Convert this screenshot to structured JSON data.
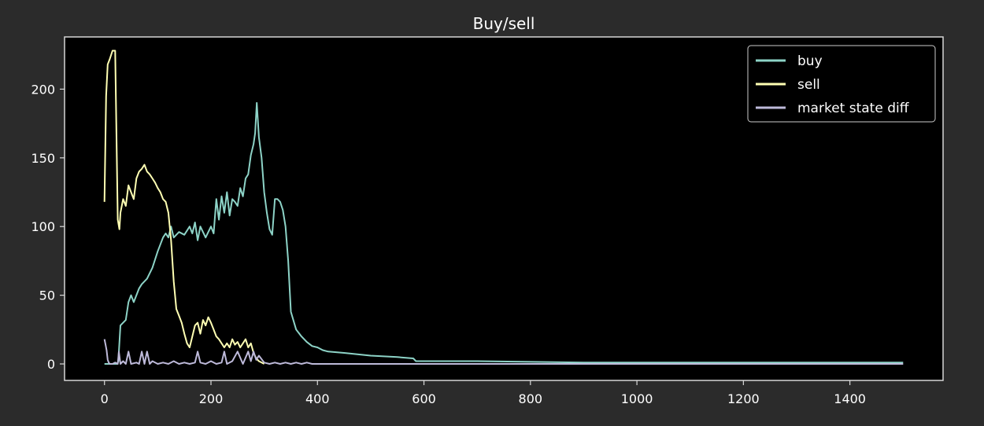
{
  "chart_data": {
    "type": "line",
    "title": "Buy/sell",
    "xlabel": "",
    "ylabel": "",
    "xlim": [
      -75,
      1575
    ],
    "ylim": [
      -12,
      238
    ],
    "xticks": [
      0,
      200,
      400,
      600,
      800,
      1000,
      1200,
      1400
    ],
    "yticks": [
      0,
      50,
      100,
      150,
      200
    ],
    "grid": false,
    "legend_position": "top-right",
    "background_color": "#000000",
    "figure_color": "#2b2b2b",
    "series": [
      {
        "name": "buy",
        "color": "#8dd3c7",
        "x": [
          0,
          10,
          20,
          24,
          26,
          30,
          40,
          45,
          50,
          55,
          60,
          65,
          70,
          80,
          90,
          100,
          110,
          115,
          120,
          125,
          130,
          140,
          150,
          160,
          165,
          170,
          175,
          180,
          190,
          200,
          205,
          210,
          215,
          220,
          225,
          230,
          235,
          240,
          245,
          250,
          255,
          260,
          265,
          270,
          275,
          280,
          283,
          286,
          290,
          295,
          300,
          305,
          310,
          315,
          320,
          325,
          330,
          335,
          340,
          345,
          350,
          360,
          370,
          380,
          390,
          400,
          410,
          420,
          450,
          500,
          550,
          580,
          585,
          700,
          900,
          1100,
          1300,
          1500
        ],
        "values": [
          0,
          0,
          0,
          0,
          2,
          28,
          32,
          45,
          50,
          45,
          50,
          55,
          58,
          62,
          70,
          82,
          92,
          95,
          92,
          100,
          92,
          96,
          94,
          100,
          95,
          103,
          90,
          100,
          92,
          100,
          95,
          120,
          105,
          122,
          110,
          125,
          108,
          120,
          118,
          115,
          128,
          122,
          135,
          138,
          152,
          160,
          168,
          190,
          165,
          150,
          125,
          110,
          98,
          94,
          120,
          120,
          118,
          112,
          100,
          75,
          38,
          25,
          20,
          16,
          13,
          12,
          10,
          9,
          8,
          6,
          5,
          4,
          2,
          2,
          1,
          1,
          1,
          1
        ]
      },
      {
        "name": "sell",
        "color": "#ffffb3",
        "x": [
          0,
          3,
          6,
          10,
          15,
          20,
          25,
          28,
          30,
          35,
          40,
          45,
          50,
          55,
          60,
          65,
          70,
          75,
          80,
          85,
          90,
          95,
          100,
          105,
          110,
          115,
          120,
          125,
          130,
          135,
          140,
          145,
          150,
          155,
          160,
          165,
          170,
          175,
          180,
          185,
          190,
          195,
          200,
          205,
          210,
          215,
          220,
          225,
          230,
          235,
          240,
          245,
          250,
          255,
          260,
          265,
          270,
          275,
          280,
          285,
          290,
          295,
          300
        ],
        "values": [
          118,
          195,
          218,
          222,
          228,
          228,
          105,
          98,
          110,
          120,
          115,
          130,
          125,
          120,
          135,
          140,
          142,
          145,
          140,
          138,
          135,
          132,
          128,
          125,
          120,
          118,
          110,
          90,
          60,
          40,
          35,
          30,
          22,
          15,
          12,
          20,
          28,
          30,
          22,
          32,
          28,
          34,
          30,
          25,
          20,
          18,
          15,
          12,
          15,
          12,
          18,
          14,
          16,
          12,
          15,
          18,
          12,
          15,
          8,
          4,
          2,
          1,
          0
        ]
      },
      {
        "name": "market state diff",
        "color": "#bebada",
        "x": [
          0,
          2,
          4,
          6,
          8,
          10,
          15,
          20,
          25,
          27,
          30,
          35,
          40,
          45,
          50,
          60,
          65,
          70,
          75,
          80,
          85,
          90,
          100,
          110,
          120,
          130,
          140,
          150,
          160,
          170,
          175,
          180,
          190,
          200,
          210,
          220,
          225,
          230,
          240,
          250,
          260,
          270,
          275,
          280,
          285,
          290,
          300,
          310,
          320,
          330,
          340,
          350,
          360,
          370,
          380,
          390,
          400,
          500,
          700,
          900,
          1100,
          1300,
          1500
        ],
        "values": [
          18,
          14,
          10,
          3,
          1,
          0,
          0,
          1,
          0,
          9,
          0,
          2,
          0,
          9,
          0,
          1,
          0,
          9,
          0,
          9,
          0,
          2,
          0,
          1,
          0,
          2,
          0,
          1,
          0,
          1,
          9,
          1,
          0,
          2,
          0,
          1,
          9,
          0,
          2,
          9,
          0,
          9,
          2,
          9,
          3,
          6,
          1,
          0,
          1,
          0,
          1,
          0,
          1,
          0,
          1,
          0,
          0,
          0,
          0,
          0,
          0,
          0,
          0
        ]
      }
    ]
  }
}
